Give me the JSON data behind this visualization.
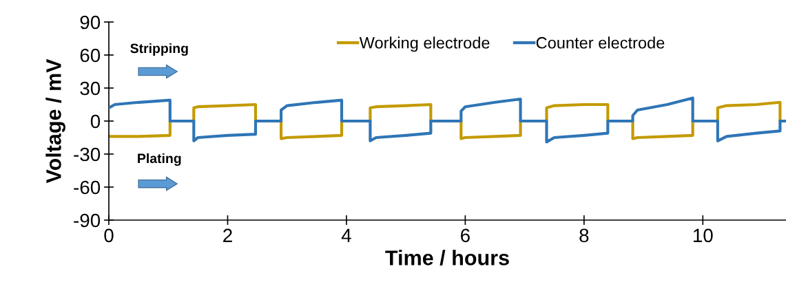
{
  "chart_data": {
    "type": "line",
    "xlabel": "Time / hours",
    "ylabel": "Voltage / mV",
    "xlim": [
      0,
      11.4
    ],
    "xticks": [
      0,
      2,
      4,
      6,
      8,
      10
    ],
    "ylim": [
      -90,
      90
    ],
    "yticks": [
      -90,
      -60,
      -30,
      0,
      30,
      60,
      90
    ],
    "grid": false,
    "legend": "top",
    "marker": "none",
    "line_style": "solid",
    "annotations": [
      "Stripping",
      "Plating"
    ],
    "series": [
      {
        "name": "Working electrode",
        "color": "#c49a00",
        "x": [
          0,
          0.5,
          1.03,
          1.03,
          1.43,
          1.43,
          1.5,
          2.0,
          2.47,
          2.47,
          2.9,
          2.9,
          3.0,
          3.5,
          3.92,
          3.92,
          4.4,
          4.4,
          4.5,
          5.0,
          5.42,
          5.42,
          5.93,
          5.93,
          6.0,
          6.5,
          6.93,
          6.93,
          7.37,
          7.37,
          7.5,
          8.0,
          8.4,
          8.4,
          8.82,
          8.82,
          8.9,
          9.4,
          9.83,
          9.83,
          10.25,
          10.25,
          10.4,
          10.9,
          11.3,
          11.3,
          11.4
        ],
        "values": [
          -14,
          -14,
          -13,
          0,
          0,
          12,
          13,
          14,
          15,
          0,
          0,
          -16,
          -15,
          -14,
          -13,
          0,
          0,
          12,
          13,
          14,
          15,
          0,
          0,
          -16,
          -15,
          -14,
          -13,
          0,
          0,
          12,
          14,
          15,
          15,
          0,
          0,
          -16,
          -15,
          -14,
          -13,
          0,
          0,
          12,
          14,
          15,
          17,
          0,
          0
        ]
      },
      {
        "name": "Counter electrode",
        "color": "#2e75b6",
        "x": [
          0,
          0.1,
          0.5,
          1.03,
          1.03,
          1.43,
          1.43,
          1.5,
          2.0,
          2.47,
          2.47,
          2.9,
          2.9,
          3.0,
          3.5,
          3.92,
          3.92,
          4.4,
          4.4,
          4.5,
          5.0,
          5.42,
          5.42,
          5.93,
          5.93,
          6.0,
          6.5,
          6.93,
          6.93,
          7.37,
          7.37,
          7.5,
          8.0,
          8.4,
          8.4,
          8.82,
          8.82,
          8.9,
          9.4,
          9.83,
          9.83,
          10.25,
          10.25,
          10.4,
          10.9,
          11.3,
          11.3,
          11.4
        ],
        "values": [
          12,
          15,
          17,
          19,
          0,
          0,
          -18,
          -15,
          -13,
          -12,
          0,
          0,
          10,
          14,
          17,
          19,
          0,
          0,
          -18,
          -15,
          -13,
          -11,
          0,
          0,
          9,
          13,
          17,
          20,
          0,
          0,
          -19,
          -15,
          -13,
          -11,
          0,
          0,
          5,
          10,
          15,
          21,
          0,
          0,
          -18,
          -14,
          -11,
          -9,
          0,
          0
        ]
      }
    ]
  }
}
